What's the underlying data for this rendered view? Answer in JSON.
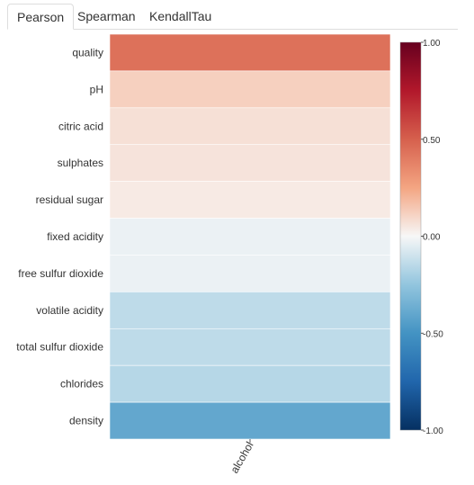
{
  "tabs": [
    {
      "label": "Pearson",
      "active": true
    },
    {
      "label": "Spearman",
      "active": false
    },
    {
      "label": "KendallTau",
      "active": false
    }
  ],
  "chart_data": {
    "type": "heatmap",
    "columns": [
      "alcohol"
    ],
    "rows": [
      "quality",
      "pH",
      "citric acid",
      "sulphates",
      "residual sugar",
      "fixed acidity",
      "free sulfur dioxide",
      "volatile acidity",
      "total sulfur dioxide",
      "chlorides",
      "density"
    ],
    "values": [
      [
        0.44
      ],
      [
        0.12
      ],
      [
        0.07
      ],
      [
        0.06
      ],
      [
        0.04
      ],
      [
        -0.03
      ],
      [
        -0.03
      ],
      [
        -0.14
      ],
      [
        -0.14
      ],
      [
        -0.16
      ],
      [
        -0.4
      ]
    ],
    "colorbar": {
      "range": [
        -1,
        1
      ],
      "ticks": [
        1.0,
        0.5,
        0.0,
        -0.5,
        -1.0
      ],
      "tick_labels": [
        "1.00",
        "0.50",
        "0.00",
        "-0.50",
        "-1.00"
      ],
      "colormap": "RdBu_r"
    },
    "grid": false
  }
}
